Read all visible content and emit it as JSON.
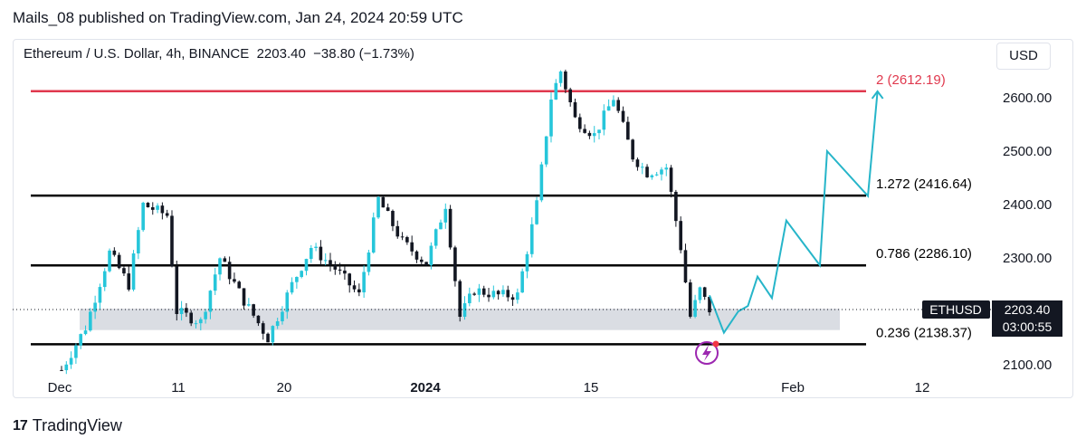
{
  "header": {
    "published": "Mails_08 published on TradingView.com, Jan 24, 2024 20:59 UTC"
  },
  "legend": {
    "text": "Ethereum / U.S. Dollar, 4h, BINANCE  2203.40  −38.80 (−1.73%)"
  },
  "currency_button": "USD",
  "footer": {
    "brand": "TradingView",
    "logo_glyph": "17"
  },
  "colors": {
    "up": "#26c6da",
    "down": "#131722",
    "level": "#000000",
    "target": "#e0394e",
    "projection": "#26b5c9",
    "zone": "#d1d4dc"
  },
  "chart_data": {
    "type": "candlestick",
    "symbol": "ETHUSD",
    "interval": "4h",
    "exchange": "BINANCE",
    "price_axis": {
      "ticks": [
        "2100.00",
        "2200.00",
        "2300.00",
        "2400.00",
        "2500.00",
        "2600.00"
      ],
      "range": [
        2090,
        2640
      ]
    },
    "time_axis": {
      "ticks": [
        "Dec",
        "11",
        "20",
        "2024",
        "15",
        "Feb",
        "12"
      ]
    },
    "last_price": {
      "symbol": "ETHUSD",
      "price": "2203.40",
      "countdown": "03:00:55"
    },
    "levels": [
      {
        "label": "2 (2612.19)",
        "value": 2612.19,
        "color": "#e0394e"
      },
      {
        "label": "1.272 (2416.64)",
        "value": 2416.64,
        "color": "#000000"
      },
      {
        "label": "0.786 (2286.10)",
        "value": 2286.1,
        "color": "#000000"
      },
      {
        "label": "0.236 (2138.37)",
        "value": 2138.37,
        "color": "#000000"
      }
    ],
    "support_zone": [
      2165,
      2205
    ],
    "key_prices": [
      {
        "t": 0,
        "p": 2090
      },
      {
        "t": 5,
        "p": 2170
      },
      {
        "t": 10,
        "p": 2310
      },
      {
        "t": 14,
        "p": 2250
      },
      {
        "t": 17,
        "p": 2400
      },
      {
        "t": 22,
        "p": 2380
      },
      {
        "t": 24,
        "p": 2200
      },
      {
        "t": 29,
        "p": 2180
      },
      {
        "t": 33,
        "p": 2300
      },
      {
        "t": 38,
        "p": 2220
      },
      {
        "t": 43,
        "p": 2150
      },
      {
        "t": 48,
        "p": 2250
      },
      {
        "t": 52,
        "p": 2320
      },
      {
        "t": 57,
        "p": 2280
      },
      {
        "t": 62,
        "p": 2230
      },
      {
        "t": 66,
        "p": 2410
      },
      {
        "t": 71,
        "p": 2330
      },
      {
        "t": 76,
        "p": 2290
      },
      {
        "t": 80,
        "p": 2400
      },
      {
        "t": 83,
        "p": 2190
      },
      {
        "t": 86,
        "p": 2240
      },
      {
        "t": 91,
        "p": 2230
      },
      {
        "t": 95,
        "p": 2230
      },
      {
        "t": 99,
        "p": 2400
      },
      {
        "t": 102,
        "p": 2600
      },
      {
        "t": 104,
        "p": 2650
      },
      {
        "t": 107,
        "p": 2560
      },
      {
        "t": 111,
        "p": 2530
      },
      {
        "t": 115,
        "p": 2600
      },
      {
        "t": 119,
        "p": 2490
      },
      {
        "t": 122,
        "p": 2460
      },
      {
        "t": 126,
        "p": 2470
      },
      {
        "t": 129,
        "p": 2320
      },
      {
        "t": 131,
        "p": 2190
      },
      {
        "t": 133,
        "p": 2240
      },
      {
        "t": 135,
        "p": 2203
      }
    ],
    "projection": [
      {
        "t": 135,
        "p": 2230
      },
      {
        "t": 138,
        "p": 2160
      },
      {
        "t": 141,
        "p": 2200
      },
      {
        "t": 143,
        "p": 2210
      },
      {
        "t": 145,
        "p": 2265
      },
      {
        "t": 148,
        "p": 2225
      },
      {
        "t": 151,
        "p": 2370
      },
      {
        "t": 158,
        "p": 2286
      },
      {
        "t": 159.5,
        "p": 2500
      },
      {
        "t": 168,
        "p": 2416
      },
      {
        "t": 170,
        "p": 2612
      }
    ]
  }
}
